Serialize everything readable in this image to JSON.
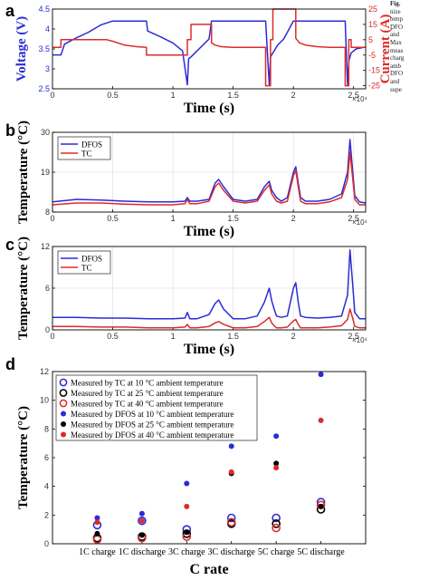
{
  "caption": {
    "lines": [
      "Fig.",
      "nize",
      "temp",
      "DFO",
      "and",
      "Max",
      "meas",
      "charg",
      "amb",
      "DFO",
      "and",
      "supe"
    ]
  },
  "colors": {
    "blue": "#2b2bd6",
    "red": "#dd2b2b",
    "grid": "#e3e3e3"
  },
  "chart_data": [
    {
      "panel_label": "a",
      "type": "line",
      "xlabel": "Time (s)",
      "ylabel": "Voltage (V)",
      "y2label": "Current (A)",
      "xlim": [
        0,
        2.6
      ],
      "x_ticks": [
        "0",
        "0.5",
        "1",
        "1.5",
        "2",
        "2.5"
      ],
      "x_exponent": "×10⁴",
      "ylim": [
        2.5,
        4.5
      ],
      "y_ticks": [
        "2.5",
        "3",
        "3.5",
        "4",
        "4.5"
      ],
      "y2lim": [
        -27,
        25
      ],
      "y2_ticks": [
        "-25",
        "-15",
        "-5",
        "5",
        "15",
        "25"
      ],
      "series": [
        {
          "axis": "left",
          "color": "blue",
          "x": [
            0,
            0.07,
            0.1,
            0.2,
            0.3,
            0.4,
            0.5,
            0.6,
            0.7,
            0.78,
            0.79,
            0.9,
            1.0,
            1.08,
            1.12,
            1.13,
            1.15,
            1.2,
            1.3,
            1.32,
            1.4,
            1.5,
            1.6,
            1.7,
            1.77,
            1.8,
            1.81,
            1.83,
            1.87,
            1.92,
            2.0,
            2.03,
            2.04,
            2.08,
            2.2,
            2.3,
            2.4,
            2.43,
            2.45,
            2.46,
            2.48,
            2.52,
            2.6
          ],
          "y": [
            3.35,
            3.35,
            3.62,
            3.78,
            3.92,
            4.1,
            4.2,
            4.2,
            4.2,
            4.2,
            3.95,
            3.8,
            3.65,
            3.45,
            2.6,
            3.25,
            3.3,
            3.45,
            3.75,
            4.2,
            4.2,
            4.2,
            4.2,
            4.2,
            4.2,
            2.6,
            3.3,
            3.4,
            3.6,
            3.75,
            4.2,
            4.2,
            4.2,
            4.2,
            4.2,
            4.2,
            4.2,
            4.2,
            2.6,
            3.2,
            3.4,
            3.5,
            3.55
          ]
        },
        {
          "axis": "right",
          "color": "red",
          "x": [
            0,
            0.07,
            0.07,
            0.45,
            0.5,
            0.6,
            0.7,
            0.78,
            0.78,
            1.12,
            1.12,
            1.15,
            1.15,
            1.32,
            1.32,
            1.35,
            1.4,
            1.5,
            1.6,
            1.77,
            1.77,
            1.81,
            1.81,
            1.83,
            1.83,
            2.02,
            2.02,
            2.05,
            2.1,
            2.2,
            2.3,
            2.43,
            2.43,
            2.46,
            2.46,
            2.48,
            2.48,
            2.6
          ],
          "y": [
            0,
            0,
            5,
            5,
            4,
            1.5,
            0.5,
            0,
            -5,
            -5,
            5,
            5,
            15,
            15,
            3,
            1.5,
            0.5,
            0,
            0,
            0,
            -25,
            -25,
            5,
            5,
            25,
            25,
            6,
            3,
            1.5,
            0.5,
            0,
            0,
            -25,
            -25,
            5,
            5,
            0,
            0
          ]
        }
      ]
    },
    {
      "panel_label": "b",
      "type": "line",
      "xlabel": "Time (s)",
      "ylabel": "Temperature (°C)",
      "xlim": [
        0,
        2.6
      ],
      "x_ticks": [
        "0",
        "0.5",
        "1",
        "1.5",
        "2",
        "2.5"
      ],
      "x_exponent": "×10⁴",
      "ylim": [
        8,
        30
      ],
      "y_ticks": [
        "8",
        "19",
        "30"
      ],
      "legend_position": "top-left",
      "series": [
        {
          "name": "DFOS",
          "color": "blue",
          "x": [
            0,
            0.2,
            0.4,
            0.6,
            0.8,
            1.0,
            1.1,
            1.12,
            1.14,
            1.2,
            1.3,
            1.35,
            1.38,
            1.42,
            1.5,
            1.6,
            1.7,
            1.76,
            1.8,
            1.82,
            1.84,
            1.86,
            1.9,
            1.95,
            2.0,
            2.02,
            2.04,
            2.06,
            2.1,
            2.2,
            2.3,
            2.4,
            2.45,
            2.47,
            2.49,
            2.51,
            2.55,
            2.6
          ],
          "y": [
            10.8,
            11.5,
            11.3,
            11.0,
            10.8,
            10.8,
            11.0,
            12.0,
            11.0,
            11.0,
            11.5,
            16.0,
            17.0,
            15.0,
            11.5,
            11.0,
            11.5,
            15.0,
            16.5,
            14.0,
            13.0,
            12.0,
            11.0,
            12.0,
            19.0,
            20.5,
            16.0,
            12.0,
            11.0,
            11.0,
            11.5,
            13.0,
            19.0,
            28.0,
            20.0,
            12.5,
            10.8,
            10.5
          ]
        },
        {
          "name": "TC",
          "color": "red",
          "x": [
            0,
            0.2,
            0.4,
            0.6,
            0.8,
            1.0,
            1.1,
            1.12,
            1.14,
            1.2,
            1.3,
            1.35,
            1.38,
            1.42,
            1.5,
            1.6,
            1.7,
            1.76,
            1.8,
            1.82,
            1.84,
            1.86,
            1.9,
            1.95,
            2.0,
            2.02,
            2.04,
            2.06,
            2.1,
            2.2,
            2.3,
            2.4,
            2.45,
            2.47,
            2.49,
            2.51,
            2.55,
            2.6
          ],
          "y": [
            10.0,
            10.5,
            10.5,
            10.2,
            10.0,
            10.0,
            10.3,
            11.5,
            10.3,
            10.3,
            11.0,
            15.0,
            16.0,
            14.0,
            11.0,
            10.5,
            11.0,
            14.0,
            15.5,
            13.0,
            12.0,
            11.0,
            10.5,
            11.0,
            18.0,
            19.5,
            15.0,
            11.0,
            10.3,
            10.3,
            10.8,
            12.0,
            17.0,
            24.5,
            18.0,
            11.5,
            10.0,
            10.0
          ]
        }
      ]
    },
    {
      "panel_label": "c",
      "type": "line",
      "xlabel": "Time (s)",
      "ylabel": "Temperature (°C)",
      "xlim": [
        0,
        2.6
      ],
      "x_ticks": [
        "0",
        "0.5",
        "1",
        "1.5",
        "2",
        "2.5"
      ],
      "x_exponent": "×10⁴",
      "ylim": [
        0,
        12
      ],
      "y_ticks": [
        "0",
        "6",
        "12"
      ],
      "legend_position": "top-left",
      "series": [
        {
          "name": "DFOS",
          "color": "blue",
          "x": [
            0,
            0.2,
            0.4,
            0.6,
            0.8,
            1.0,
            1.1,
            1.12,
            1.14,
            1.2,
            1.3,
            1.35,
            1.38,
            1.42,
            1.5,
            1.6,
            1.7,
            1.76,
            1.8,
            1.82,
            1.84,
            1.86,
            1.9,
            1.95,
            2.0,
            2.02,
            2.04,
            2.06,
            2.1,
            2.2,
            2.3,
            2.4,
            2.45,
            2.47,
            2.49,
            2.51,
            2.55,
            2.6
          ],
          "y": [
            1.8,
            1.8,
            1.7,
            1.7,
            1.6,
            1.6,
            1.7,
            2.5,
            1.6,
            1.6,
            2.2,
            3.8,
            4.3,
            3.0,
            1.6,
            1.6,
            2.0,
            4.0,
            6.0,
            4.2,
            3.0,
            2.0,
            1.8,
            2.0,
            6.0,
            6.8,
            4.0,
            2.0,
            1.8,
            1.7,
            1.8,
            2.0,
            5.0,
            11.5,
            7.0,
            2.5,
            1.6,
            1.6
          ]
        },
        {
          "name": "TC",
          "color": "red",
          "x": [
            0,
            0.2,
            0.4,
            0.6,
            0.8,
            1.0,
            1.1,
            1.12,
            1.14,
            1.2,
            1.3,
            1.35,
            1.38,
            1.42,
            1.5,
            1.6,
            1.7,
            1.76,
            1.8,
            1.82,
            1.84,
            1.86,
            1.9,
            1.95,
            2.0,
            2.02,
            2.04,
            2.06,
            2.1,
            2.2,
            2.3,
            2.4,
            2.45,
            2.47,
            2.49,
            2.51,
            2.55,
            2.6
          ],
          "y": [
            0.5,
            0.5,
            0.4,
            0.4,
            0.3,
            0.3,
            0.4,
            0.8,
            0.3,
            0.3,
            0.5,
            1.0,
            1.2,
            0.8,
            0.3,
            0.3,
            0.5,
            1.2,
            1.8,
            1.0,
            0.6,
            0.3,
            0.3,
            0.4,
            1.3,
            1.5,
            0.8,
            0.3,
            0.3,
            0.3,
            0.4,
            0.6,
            1.5,
            3.0,
            1.8,
            0.5,
            0.3,
            0.3
          ]
        }
      ]
    },
    {
      "panel_label": "d",
      "type": "scatter",
      "xlabel": "C rate",
      "ylabel": "Temperature (°C)",
      "categories": [
        "1C charge",
        "1C discharge",
        "3C charge",
        "3C discharge",
        "5C charge",
        "5C discharge"
      ],
      "ylim": [
        0,
        12
      ],
      "y_ticks": [
        "0",
        "2",
        "4",
        "6",
        "8",
        "10",
        "12"
      ],
      "legend_position": "top-left",
      "series": [
        {
          "name": "Measured by TC at 10 °C ambient temperature",
          "color": "blue",
          "filled": false,
          "values": [
            1.3,
            1.6,
            1.0,
            1.8,
            1.8,
            2.9
          ]
        },
        {
          "name": "Measured by TC at 25 °C ambient temperature",
          "color": "black",
          "filled": false,
          "values": [
            0.4,
            0.5,
            0.7,
            1.4,
            1.4,
            2.4
          ]
        },
        {
          "name": "Measured by TC at 40 °C ambient temperature",
          "color": "red",
          "filled": false,
          "values": [
            0.3,
            0.4,
            0.5,
            1.5,
            1.1,
            2.7
          ]
        },
        {
          "name": "Measured by DFOS at 10 °C ambient temperature",
          "color": "blue",
          "filled": true,
          "values": [
            1.8,
            2.1,
            4.2,
            6.8,
            7.5,
            11.8
          ]
        },
        {
          "name": "Measured by DFOS at 25 °C ambient temperature",
          "color": "black",
          "filled": true,
          "values": [
            0.7,
            0.6,
            0.8,
            4.9,
            5.6,
            2.6
          ]
        },
        {
          "name": "Measured by DFOS at 40 °C ambient temperature",
          "color": "red",
          "filled": true,
          "values": [
            1.5,
            1.6,
            2.6,
            5.0,
            5.3,
            8.6
          ]
        }
      ]
    }
  ]
}
